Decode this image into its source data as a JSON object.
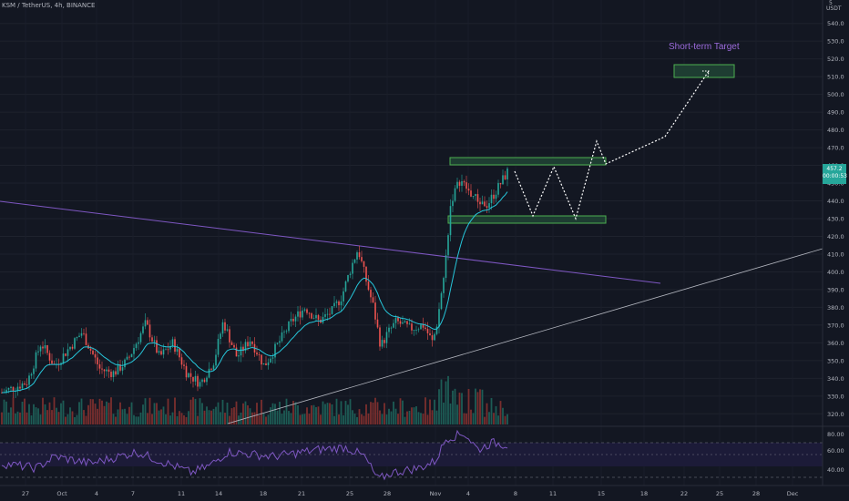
{
  "header": {
    "symbol": "KSM / TetherUS",
    "timeframe": "4h",
    "exchange": "BINANCE",
    "sep": ", "
  },
  "price_axis": {
    "unit": "USDT",
    "top_tick": "5",
    "ticks": [
      "540.0",
      "530.0",
      "520.0",
      "510.0",
      "500.0",
      "490.0",
      "480.0",
      "470.0",
      "460.0",
      "450.0",
      "440.0",
      "430.0",
      "420.0",
      "410.0",
      "400.0",
      "390.0",
      "380.0",
      "370.0",
      "360.0",
      "350.0",
      "340.0",
      "330.0",
      "320.0"
    ],
    "current_price": "457.2",
    "countdown": "00:00:53",
    "ymin": 314,
    "ymax": 546
  },
  "rsi_axis": {
    "ticks": [
      "80.00",
      "60.00",
      "40.00"
    ]
  },
  "time_axis": {
    "labels": [
      "27",
      "Oct",
      "4",
      "7",
      "11",
      "14",
      "18",
      "21",
      "25",
      "28",
      "Nov",
      "4",
      "8",
      "11",
      "15",
      "18",
      "22",
      "25",
      "28",
      "Dec"
    ]
  },
  "annotation": {
    "text": "Short-term Target"
  },
  "colors": {
    "background": "#131722",
    "up": "#26a69a",
    "down": "#ef5350",
    "ma_line": "#26c6da",
    "resistance_line": "#7e57c2",
    "support_line": "#b2b5be",
    "box_fill": "#1e3d32",
    "box_border": "#4caf50",
    "rsi_line": "#7e57c2",
    "rsi_band": "#1c1b38",
    "annotation": "#9c6bdc"
  },
  "chart_data": {
    "type": "candlestick",
    "series": [
      {
        "name": "KSM / TetherUS",
        "kind": "ohlc",
        "start_close": 332,
        "end_close": 457.2
      },
      {
        "name": "RSI",
        "kind": "oscillator",
        "levels": [
          70,
          50,
          30
        ]
      }
    ],
    "trendlines": [
      {
        "from": [
          "2021-09-26",
          437
        ],
        "to": [
          "2021-11-18",
          393
        ]
      },
      {
        "from": [
          "2021-10-14",
          314
        ],
        "to": [
          "2021-12-05",
          411
        ]
      }
    ],
    "zones": [
      {
        "label": "resistance-box",
        "low": 460,
        "high": 465
      },
      {
        "label": "support-box",
        "low": 428,
        "high": 431
      },
      {
        "label": "Short-term Target",
        "low": 509,
        "high": 517
      }
    ],
    "ylim": [
      314,
      546
    ]
  }
}
